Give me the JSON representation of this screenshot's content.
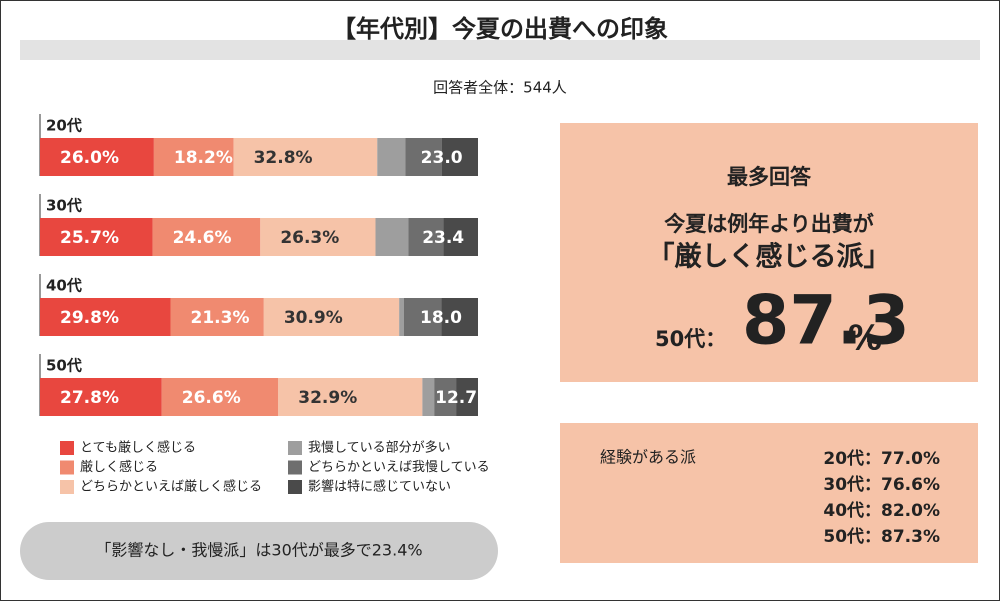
{
  "chart_data": {
    "type": "stacked-bar-horizontal",
    "title": "【年代別】今夏の出費への印象",
    "subtitle": "回答者全体：544人",
    "categories": [
      "20代",
      "30代",
      "40代",
      "50代"
    ],
    "xlim": [
      0,
      100
    ],
    "series": [
      {
        "name": "とても厳しく感じる",
        "color": "#e8473f",
        "values": [
          26.0,
          25.7,
          29.8,
          27.8
        ],
        "value_labels": [
          "26.0%",
          "25.7%",
          "29.8%",
          "27.8%"
        ]
      },
      {
        "name": "厳しく感じる",
        "color": "#f08a70",
        "values": [
          18.2,
          24.6,
          21.3,
          26.6
        ],
        "value_labels": [
          "18.2%",
          "24.6%",
          "21.3%",
          "26.6%"
        ]
      },
      {
        "name": "どちらかといえば厳しく感じる",
        "color": "#f6c3a8",
        "values": [
          32.8,
          26.3,
          30.9,
          32.9
        ],
        "value_labels": [
          "32.8%",
          "26.3%",
          "30.9%",
          "32.9%"
        ]
      },
      {
        "name": "我慢している部分が多い",
        "color": "#9e9e9e",
        "values": [
          6.4,
          7.5,
          1.1,
          2.7
        ]
      },
      {
        "name": "どちらかといえば我慢している",
        "color": "#6e6e6e",
        "values": [
          8.3,
          8.0,
          8.5,
          5.0
        ]
      },
      {
        "name": "影響は特に感じていない",
        "color": "#4a4a4a",
        "values": [
          8.3,
          7.9,
          8.4,
          5.0
        ]
      }
    ],
    "remainder_labels": [
      "23.0",
      "23.4",
      "18.0",
      "12.7"
    ],
    "note": "「影響なし・我慢派」は30代が最多で23.4%"
  },
  "highlight": {
    "heading": "最多回答",
    "line1": "今夏は例年より出費が",
    "line2": "「厳しく感じる派」",
    "prefix": "50代：",
    "number": "87.3",
    "unit": "%"
  },
  "experience": {
    "heading": "経験がある派",
    "rows": [
      "20代：77.0%",
      "30代：76.6%",
      "40代：82.0%",
      "50代：87.3%"
    ]
  }
}
